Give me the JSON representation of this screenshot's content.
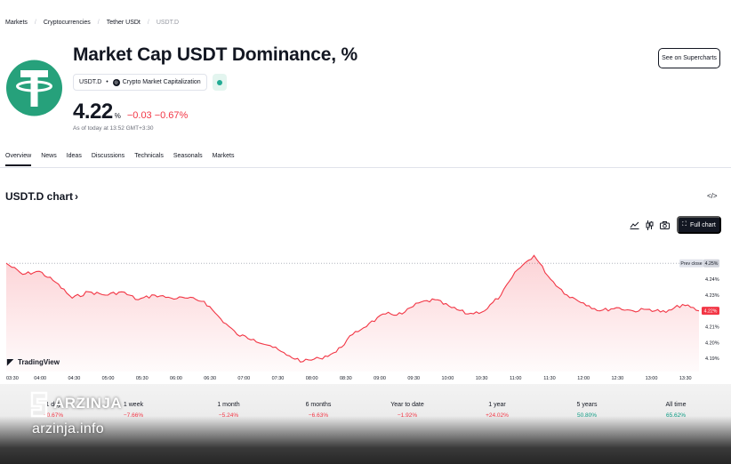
{
  "breadcrumb": [
    "Markets",
    "Cryptocurrencies",
    "Tether USDt",
    "USDT.D"
  ],
  "title": "Market Cap USDT Dominance, %",
  "symbol_tag": "USDT.D",
  "source_tag": "Crypto Market Capitalization",
  "price": "4.22",
  "price_unit": "%",
  "change_abs": "−0.03",
  "change_pct": "−0.67%",
  "as_of": "As of today at 13:52 GMT+3:30",
  "supercharts_label": "See on Supercharts",
  "tabs": [
    "Overview",
    "News",
    "Ideas",
    "Discussions",
    "Technicals",
    "Seasonals",
    "Markets"
  ],
  "section_title": "USDT.D chart",
  "full_chart_label": "Full chart",
  "toolbar_icons": [
    "area-chart-icon",
    "candles-icon",
    "camera-icon",
    "fullscreen-icon"
  ],
  "colors": {
    "line": "#f23645",
    "fill": "#f23645",
    "logo": "#26a17b",
    "positive": "#089981",
    "negative": "#f23645"
  },
  "chart_data": {
    "type": "area",
    "x": [
      "03:30",
      "03:45",
      "04:00",
      "04:15",
      "04:30",
      "04:45",
      "05:00",
      "05:15",
      "05:30",
      "05:45",
      "06:00",
      "06:15",
      "06:30",
      "06:45",
      "07:00",
      "07:15",
      "07:30",
      "07:45",
      "08:00",
      "08:15",
      "08:30",
      "08:45",
      "09:00",
      "09:15",
      "09:30",
      "09:45",
      "10:00",
      "10:15",
      "10:30",
      "10:45",
      "11:00",
      "11:15",
      "11:30",
      "11:45",
      "12:00",
      "12:15",
      "12:30",
      "12:45",
      "13:00",
      "13:15",
      "13:30",
      "13:45",
      "13:52"
    ],
    "values": [
      4.25,
      4.243,
      4.245,
      4.238,
      4.228,
      4.232,
      4.23,
      4.232,
      4.227,
      4.23,
      4.228,
      4.228,
      4.226,
      4.215,
      4.205,
      4.202,
      4.198,
      4.192,
      4.188,
      4.19,
      4.194,
      4.205,
      4.212,
      4.218,
      4.218,
      4.225,
      4.227,
      4.222,
      4.218,
      4.22,
      4.23,
      4.246,
      4.255,
      4.24,
      4.23,
      4.225,
      4.22,
      4.222,
      4.22,
      4.221,
      4.219,
      4.224,
      4.22
    ],
    "x_tick_labels": [
      "03:30",
      "04:00",
      "04:30",
      "05:00",
      "05:30",
      "06:00",
      "06:30",
      "07:00",
      "07:30",
      "08:00",
      "08:30",
      "09:00",
      "09:30",
      "10:00",
      "10:30",
      "11:00",
      "11:30",
      "12:00",
      "12:30",
      "13:00",
      "13:30"
    ],
    "y_tick_labels": [
      "4.24%",
      "4.23%",
      "4.21%",
      "4.20%",
      "4.19%"
    ],
    "y_ticks": [
      4.24,
      4.23,
      4.21,
      4.2,
      4.19
    ],
    "ylim": [
      4.185,
      4.258
    ],
    "prev_close": 4.25,
    "prev_close_label": "Prev close",
    "prev_close_value_label": "4.25%",
    "last_value_label": "4.22%",
    "brand": "TradingView"
  },
  "stats": [
    {
      "label": "1 day",
      "value": "−0.67%",
      "tone": "neg"
    },
    {
      "label": "1 week",
      "value": "−7.66%",
      "tone": "neg"
    },
    {
      "label": "1 month",
      "value": "−5.24%",
      "tone": "neg"
    },
    {
      "label": "6 months",
      "value": "−6.63%",
      "tone": "neg"
    },
    {
      "label": "Year to date",
      "value": "−1.92%",
      "tone": "neg"
    },
    {
      "label": "1 year",
      "value": "+24.02%",
      "tone": "neg"
    },
    {
      "label": "5 years",
      "value": "50.80%",
      "tone": "pos"
    },
    {
      "label": "All time",
      "value": "65.62%",
      "tone": "pos"
    }
  ],
  "watermark": {
    "name": "ARZINJA",
    "site": "arzinja.info"
  }
}
